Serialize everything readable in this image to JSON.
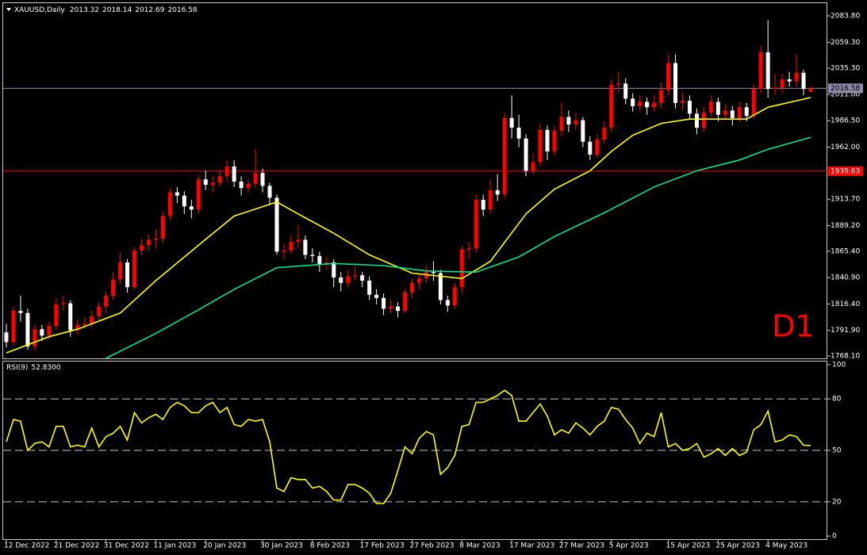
{
  "chart_data": {
    "type": "candlestick",
    "symbol": "XAUUSD,Daily",
    "up_color": "#ff0000",
    "down_color": "#ffffff",
    "categories": [
      "12 Dec 2022",
      null,
      null,
      null,
      null,
      null,
      null,
      "21 Dec 2022",
      null,
      null,
      null,
      null,
      null,
      null,
      "31 Dec 2022",
      null,
      null,
      null,
      null,
      null,
      null,
      "11 Jan 2023",
      null,
      null,
      null,
      null,
      null,
      null,
      "20 Jan 2023",
      null,
      null,
      null,
      null,
      null,
      null,
      null,
      "30 Jan 2023",
      null,
      null,
      null,
      null,
      null,
      null,
      "8 Feb 2023",
      null,
      null,
      null,
      null,
      null,
      null,
      "17 Feb 2023",
      null,
      null,
      null,
      null,
      null,
      null,
      "27 Feb 2023",
      null,
      null,
      null,
      null,
      null,
      null,
      "8 Mar 2023",
      null,
      null,
      null,
      null,
      null,
      null,
      "17 Mar 2023",
      null,
      null,
      null,
      null,
      null,
      null,
      "27 Mar 2023",
      null,
      null,
      null,
      null,
      null,
      null,
      "5 Apr 2023",
      null,
      null,
      null,
      null,
      null,
      null,
      null,
      "15 Apr 2023",
      null,
      null,
      null,
      null,
      null,
      null,
      "25 Apr 2023",
      null,
      null,
      null,
      null,
      null,
      null,
      "4 May 2023",
      null,
      null,
      null,
      null,
      null,
      null
    ],
    "ohlc": [
      [
        1790,
        1798,
        1776,
        1781
      ],
      [
        1781,
        1814,
        1778,
        1810
      ],
      [
        1810,
        1824,
        1800,
        1808
      ],
      [
        1808,
        1812,
        1774,
        1777
      ],
      [
        1777,
        1798,
        1773,
        1793
      ],
      [
        1793,
        1797,
        1782,
        1787
      ],
      [
        1787,
        1800,
        1784,
        1796
      ],
      [
        1796,
        1822,
        1792,
        1816
      ],
      [
        1816,
        1824,
        1810,
        1817
      ],
      [
        1817,
        1820,
        1786,
        1792
      ],
      [
        1792,
        1802,
        1788,
        1797
      ],
      [
        1797,
        1804,
        1794,
        1798
      ],
      [
        1798,
        1810,
        1795,
        1805
      ],
      [
        1805,
        1818,
        1800,
        1814
      ],
      [
        1814,
        1828,
        1809,
        1824
      ],
      [
        1824,
        1846,
        1820,
        1839
      ],
      [
        1839,
        1864,
        1835,
        1855
      ],
      [
        1855,
        1858,
        1827,
        1832
      ],
      [
        1832,
        1869,
        1830,
        1866
      ],
      [
        1866,
        1877,
        1862,
        1871
      ],
      [
        1871,
        1881,
        1866,
        1876
      ],
      [
        1876,
        1886,
        1868,
        1877
      ],
      [
        1877,
        1902,
        1873,
        1898
      ],
      [
        1898,
        1924,
        1894,
        1920
      ],
      [
        1920,
        1925,
        1910,
        1917
      ],
      [
        1917,
        1921,
        1900,
        1907
      ],
      [
        1907,
        1913,
        1896,
        1904
      ],
      [
        1904,
        1936,
        1900,
        1932
      ],
      [
        1932,
        1940,
        1922,
        1927
      ],
      [
        1927,
        1935,
        1920,
        1929
      ],
      [
        1929,
        1941,
        1925,
        1935
      ],
      [
        1935,
        1950,
        1930,
        1944
      ],
      [
        1944,
        1950,
        1925,
        1930
      ],
      [
        1930,
        1935,
        1917,
        1924
      ],
      [
        1924,
        1932,
        1920,
        1928
      ],
      [
        1928,
        1960,
        1924,
        1938
      ],
      [
        1938,
        1942,
        1920,
        1926
      ],
      [
        1926,
        1929,
        1908,
        1915
      ],
      [
        1915,
        1918,
        1862,
        1865
      ],
      [
        1865,
        1872,
        1858,
        1866
      ],
      [
        1866,
        1880,
        1863,
        1874
      ],
      [
        1874,
        1890,
        1868,
        1876
      ],
      [
        1876,
        1880,
        1858,
        1862
      ],
      [
        1862,
        1868,
        1855,
        1861
      ],
      [
        1861,
        1865,
        1846,
        1853
      ],
      [
        1853,
        1860,
        1848,
        1855
      ],
      [
        1855,
        1858,
        1832,
        1841
      ],
      [
        1841,
        1846,
        1828,
        1836
      ],
      [
        1836,
        1848,
        1832,
        1842
      ],
      [
        1842,
        1852,
        1838,
        1843
      ],
      [
        1843,
        1846,
        1832,
        1838
      ],
      [
        1838,
        1842,
        1820,
        1825
      ],
      [
        1825,
        1830,
        1816,
        1822
      ],
      [
        1822,
        1826,
        1806,
        1812
      ],
      [
        1812,
        1820,
        1808,
        1814
      ],
      [
        1814,
        1818,
        1804,
        1810
      ],
      [
        1810,
        1830,
        1808,
        1827
      ],
      [
        1827,
        1840,
        1822,
        1836
      ],
      [
        1836,
        1845,
        1830,
        1840
      ],
      [
        1840,
        1852,
        1836,
        1846
      ],
      [
        1846,
        1856,
        1838,
        1845
      ],
      [
        1845,
        1848,
        1816,
        1820
      ],
      [
        1820,
        1824,
        1809,
        1815
      ],
      [
        1815,
        1836,
        1812,
        1832
      ],
      [
        1832,
        1870,
        1826,
        1867
      ],
      [
        1867,
        1874,
        1858,
        1868
      ],
      [
        1868,
        1918,
        1864,
        1913
      ],
      [
        1913,
        1918,
        1898,
        1904
      ],
      [
        1904,
        1932,
        1900,
        1922
      ],
      [
        1922,
        1937,
        1912,
        1918
      ],
      [
        1918,
        1994,
        1914,
        1989
      ],
      [
        1989,
        2010,
        1970,
        1980
      ],
      [
        1980,
        1992,
        1962,
        1970
      ],
      [
        1970,
        1974,
        1935,
        1940
      ],
      [
        1940,
        1956,
        1936,
        1948
      ],
      [
        1948,
        1984,
        1944,
        1978
      ],
      [
        1978,
        1982,
        1950,
        1958
      ],
      [
        1958,
        1982,
        1954,
        1977
      ],
      [
        1977,
        2003,
        1972,
        1990
      ],
      [
        1990,
        1996,
        1976,
        1983
      ],
      [
        1983,
        1994,
        1978,
        1987
      ],
      [
        1987,
        1990,
        1962,
        1967
      ],
      [
        1967,
        1972,
        1950,
        1955
      ],
      [
        1955,
        1974,
        1952,
        1969
      ],
      [
        1969,
        1986,
        1965,
        1980
      ],
      [
        1980,
        2025,
        1976,
        2020
      ],
      [
        2020,
        2032,
        2012,
        2021
      ],
      [
        2021,
        2026,
        2002,
        2007
      ],
      [
        2007,
        2012,
        1995,
        2000
      ],
      [
        2000,
        2010,
        1996,
        2004
      ],
      [
        2004,
        2008,
        1992,
        1999
      ],
      [
        1999,
        2010,
        1995,
        2003
      ],
      [
        2003,
        2022,
        1998,
        2015
      ],
      [
        2015,
        2048,
        2010,
        2040
      ],
      [
        2040,
        2048,
        1998,
        2003
      ],
      [
        2003,
        2012,
        1996,
        2005
      ],
      [
        2005,
        2010,
        1988,
        1993
      ],
      [
        1993,
        1998,
        1974,
        1980
      ],
      [
        1980,
        1999,
        1976,
        1994
      ],
      [
        1994,
        2010,
        1990,
        2004
      ],
      [
        2004,
        2008,
        1986,
        1992
      ],
      [
        1992,
        2002,
        1988,
        1996
      ],
      [
        1996,
        2000,
        1982,
        1989
      ],
      [
        1989,
        2004,
        1985,
        1999
      ],
      [
        1999,
        2003,
        1986,
        1991
      ],
      [
        1991,
        2020,
        1988,
        2016
      ],
      [
        2016,
        2056,
        2012,
        2050
      ],
      [
        2050,
        2080,
        2008,
        2016
      ],
      [
        2016,
        2030,
        2010,
        2017
      ],
      [
        2017,
        2030,
        2012,
        2025
      ],
      [
        2025,
        2032,
        2018,
        2023
      ],
      [
        2023,
        2048,
        2018,
        2031
      ],
      [
        2031,
        2034,
        2010,
        2016
      ],
      [
        2013.32,
        2018.14,
        2012.69,
        2016.58
      ]
    ],
    "moving_averages": [
      {
        "color": "#ffff00",
        "x": [
          0,
          6,
          10,
          16,
          21,
          27,
          32,
          38,
          41,
          46,
          51,
          57,
          64,
          68,
          73,
          77,
          82,
          85,
          88,
          92,
          96,
          104,
          107,
          113
        ],
        "values": [
          1771,
          1786,
          1793,
          1808,
          1838,
          1871,
          1898,
          1911,
          1900,
          1882,
          1862,
          1845,
          1840,
          1856,
          1900,
          1923,
          1940,
          1958,
          1973,
          1984,
          1988,
          1988,
          1999,
          2008
        ]
      },
      {
        "color": "#00e68c",
        "x": [
          14,
          21,
          27,
          32,
          38,
          46,
          53,
          59,
          66,
          72,
          77,
          84,
          91,
          97,
          103,
          107,
          113
        ],
        "values": [
          1766,
          1789,
          1811,
          1830,
          1850,
          1854,
          1852,
          1847,
          1846,
          1860,
          1879,
          1901,
          1925,
          1940,
          1950,
          1960,
          1971
        ]
      }
    ],
    "ylim": [
      1765.9,
      2095.6
    ],
    "yticks": [
      {
        "value": 2083.8,
        "label": "2083.80"
      },
      {
        "value": 2059.3,
        "label": "2059.30"
      },
      {
        "value": 2035.3,
        "label": "2035.30"
      },
      {
        "value": 2011.0,
        "label": "2011.00"
      },
      {
        "value": 1986.5,
        "label": "1986.50"
      },
      {
        "value": 1962.0,
        "label": "1962.00"
      },
      {
        "value": 1913.7,
        "label": "1913.70"
      },
      {
        "value": 1889.2,
        "label": "1889.20"
      },
      {
        "value": 1865.4,
        "label": "1865.40"
      },
      {
        "value": 1840.9,
        "label": "1840.90"
      },
      {
        "value": 1816.4,
        "label": "1816.40"
      },
      {
        "value": 1791.9,
        "label": "1791.90"
      },
      {
        "value": 1768.1,
        "label": "1768.10"
      }
    ],
    "levels": [
      {
        "value": 2016.58,
        "color": "#8c8ca8",
        "text_color": "#000000"
      },
      {
        "value": 1939.63,
        "color": "#ff0000",
        "text_color": "#ffffff"
      }
    ],
    "annotation": {
      "text": "D1",
      "color": "#ff0000"
    },
    "rsi": {
      "name": "RSI(9)",
      "current_label": "52.8300",
      "color": "#ffff00",
      "ylim": [
        -1.8,
        101.8
      ],
      "yticks": [
        100,
        80,
        50,
        20,
        0
      ],
      "dashed_levels": [
        80,
        50,
        20
      ],
      "values": [
        55,
        68,
        67,
        50,
        54,
        55,
        52,
        64,
        64,
        52,
        53,
        52,
        63,
        52,
        58,
        60,
        64,
        56,
        72,
        66,
        69,
        71,
        68,
        75,
        78,
        76,
        72,
        72,
        76,
        78,
        72,
        75,
        65,
        64,
        68,
        67,
        68,
        55,
        28,
        26,
        34,
        33,
        33,
        28,
        29,
        26,
        21,
        21,
        30,
        30,
        28,
        25,
        19,
        19,
        25,
        38,
        52,
        48,
        57,
        61,
        59,
        36,
        40,
        47,
        64,
        65,
        78,
        78,
        80,
        82,
        85,
        82,
        67,
        67,
        72,
        77,
        70,
        59,
        62,
        60,
        66,
        63,
        59,
        64,
        67,
        75,
        74,
        68,
        63,
        54,
        60,
        58,
        72,
        52,
        54,
        50,
        51,
        54,
        46,
        48,
        51,
        47,
        51,
        47,
        49,
        62,
        65,
        73,
        55,
        56,
        59,
        58,
        53,
        52.83
      ]
    }
  }
}
